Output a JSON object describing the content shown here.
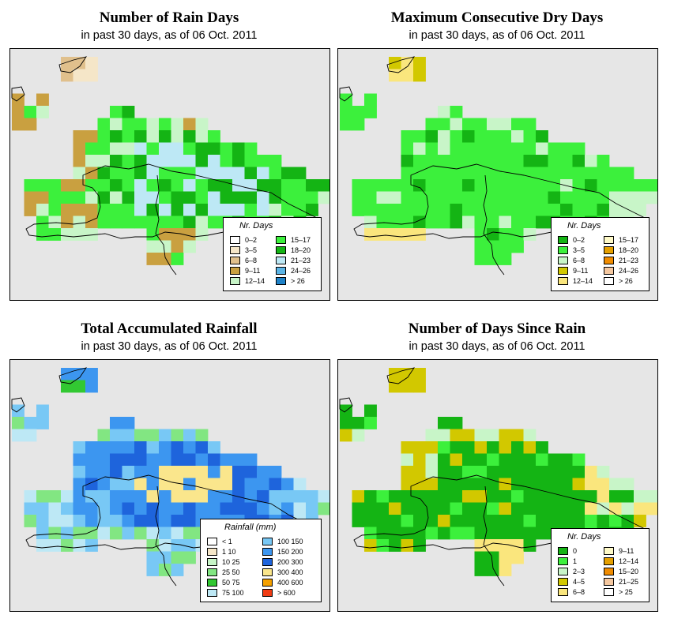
{
  "panels": [
    {
      "id": "rain-days",
      "title": "Number of Rain Days",
      "subtitle": "in past 30 days, as of  06 Oct. 2011",
      "legend": {
        "title": "Nr. Days",
        "items": [
          {
            "label": "0–2",
            "color": "#ffffff"
          },
          {
            "label": "3–5",
            "color": "#f5e6c8"
          },
          {
            "label": "6–8",
            "color": "#e0c08c"
          },
          {
            "label": "9–11",
            "color": "#c9a040"
          },
          {
            "label": "12–14",
            "color": "#c8f5c8"
          },
          {
            "label": "15–17",
            "color": "#3cf03c"
          },
          {
            "label": "18–20",
            "color": "#14b414"
          },
          {
            "label": "21–23",
            "color": "#bde8f5"
          },
          {
            "label": "24–26",
            "color": "#5ab4e6"
          },
          {
            "label": "> 26",
            "color": "#1e82c8"
          }
        ]
      }
    },
    {
      "id": "max-dry-days",
      "title": "Maximum Consecutive Dry Days",
      "subtitle": "in past 30 days, as of  06 Oct. 2011",
      "legend": {
        "title": "Nr. Days",
        "items": [
          {
            "label": "0–2",
            "color": "#14b414"
          },
          {
            "label": "3–5",
            "color": "#3cf03c"
          },
          {
            "label": "6–8",
            "color": "#c8f5c8"
          },
          {
            "label": "9–11",
            "color": "#d2c800"
          },
          {
            "label": "12–14",
            "color": "#fae67d"
          },
          {
            "label": "15–17",
            "color": "#fffac8"
          },
          {
            "label": "18–20",
            "color": "#e6a000"
          },
          {
            "label": "21–23",
            "color": "#f08c00"
          },
          {
            "label": "24–26",
            "color": "#f5c8a0"
          },
          {
            "label": "> 26",
            "color": "#ffffff"
          }
        ]
      }
    },
    {
      "id": "total-rainfall",
      "title": "Total Accumulated Rainfall",
      "subtitle": "in past 30 days, as of  06 Oct. 2011",
      "legend": {
        "title": "Rainfall (mm)",
        "items": [
          {
            "label": "< 1",
            "color": "#ffffff"
          },
          {
            "label": "1     10",
            "color": "#f5e6c8"
          },
          {
            "label": "10     25",
            "color": "#c8f5c8"
          },
          {
            "label": "25     50",
            "color": "#82e682"
          },
          {
            "label": "50     75",
            "color": "#32c832"
          },
          {
            "label": "75   100",
            "color": "#bde8f5"
          },
          {
            "label": "100   150",
            "color": "#78c8f5"
          },
          {
            "label": "150   200",
            "color": "#3c96f0"
          },
          {
            "label": "200   300",
            "color": "#1e64dc"
          },
          {
            "label": "300   400",
            "color": "#fae68c"
          },
          {
            "label": "400   600",
            "color": "#f5a000"
          },
          {
            "label": "> 600",
            "color": "#f03c14"
          }
        ]
      }
    },
    {
      "id": "days-since-rain",
      "title": "Number of Days Since Rain",
      "subtitle": "in past 30 days, as of  06 Oct. 2011",
      "legend": {
        "title": "Nr. Days",
        "items": [
          {
            "label": "0",
            "color": "#14b414"
          },
          {
            "label": "1",
            "color": "#3cf03c"
          },
          {
            "label": "2–3",
            "color": "#c8f5c8"
          },
          {
            "label": "4–5",
            "color": "#d2c800"
          },
          {
            "label": "6–8",
            "color": "#fae67d"
          },
          {
            "label": "9–11",
            "color": "#fffac8"
          },
          {
            "label": "12–14",
            "color": "#e6a000"
          },
          {
            "label": "15–20",
            "color": "#f08c00"
          },
          {
            "label": "21–25",
            "color": "#f5c8a0"
          },
          {
            "label": "> 25",
            "color": "#ffffff"
          }
        ]
      }
    }
  ]
}
